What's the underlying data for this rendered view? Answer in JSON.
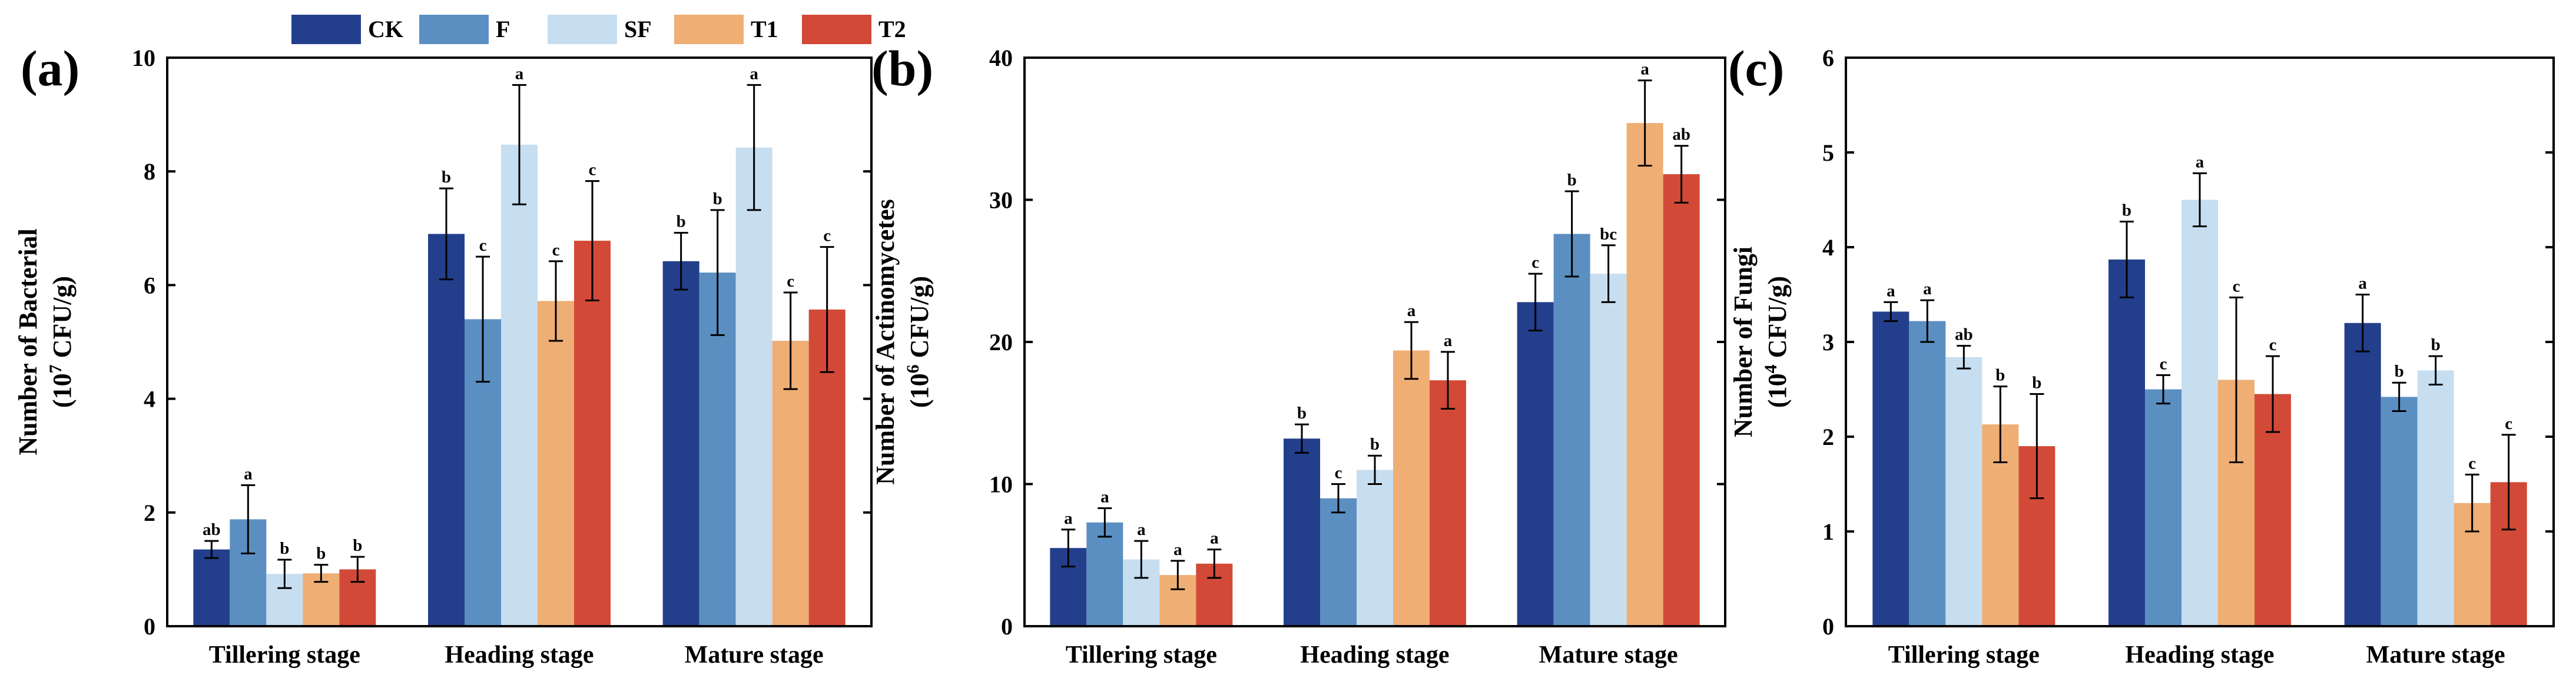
{
  "colors": {
    "CK": "#233f8c",
    "F": "#5b8fc2",
    "SF": "#c7def0",
    "T1": "#efae74",
    "T2": "#d24a37"
  },
  "legend": [
    "CK",
    "F",
    "SF",
    "T1",
    "T2"
  ],
  "chart_data": [
    {
      "type": "bar",
      "panel_label": "(a)",
      "categories": [
        "Tillering stage",
        "Heading stage",
        "Mature stage"
      ],
      "ylabel_line1": "Number of Bacterial",
      "ylabel_line2_pre": "(10",
      "ylabel_line2_sup": "7",
      "ylabel_line2_post": " CFU/g)",
      "ylim": [
        0,
        10
      ],
      "yticks": [
        0,
        2,
        4,
        6,
        8,
        10
      ],
      "series": [
        {
          "name": "CK",
          "values": [
            1.35,
            6.9,
            6.42
          ],
          "errors": [
            0.15,
            0.8,
            0.5
          ],
          "letters": [
            "ab",
            "b",
            "b"
          ]
        },
        {
          "name": "F",
          "values": [
            1.88,
            5.4,
            6.22
          ],
          "errors": [
            0.6,
            1.1,
            1.1
          ],
          "letters": [
            "a",
            "c",
            "b"
          ]
        },
        {
          "name": "SF",
          "values": [
            0.92,
            8.47,
            8.42
          ],
          "errors": [
            0.25,
            1.05,
            1.1
          ],
          "letters": [
            "b",
            "a",
            "a"
          ]
        },
        {
          "name": "T1",
          "values": [
            0.93,
            5.72,
            5.02
          ],
          "errors": [
            0.15,
            0.7,
            0.85
          ],
          "letters": [
            "b",
            "c",
            "c"
          ]
        },
        {
          "name": "T2",
          "values": [
            1.0,
            6.78,
            5.57
          ],
          "errors": [
            0.22,
            1.05,
            1.1
          ],
          "letters": [
            "b",
            "c",
            "c"
          ]
        }
      ]
    },
    {
      "type": "bar",
      "panel_label": "(b)",
      "categories": [
        "Tillering stage",
        "Heading stage",
        "Mature stage"
      ],
      "ylabel_line1": "Number of Actinomycetes",
      "ylabel_line2_pre": "(10",
      "ylabel_line2_sup": "6",
      "ylabel_line2_post": " CFU/g)",
      "ylim": [
        0,
        40
      ],
      "yticks": [
        0,
        10,
        20,
        30,
        40
      ],
      "series": [
        {
          "name": "CK",
          "values": [
            5.5,
            13.2,
            22.8
          ],
          "errors": [
            1.3,
            1.0,
            2.0
          ],
          "letters": [
            "a",
            "b",
            "c"
          ]
        },
        {
          "name": "F",
          "values": [
            7.3,
            9.0,
            27.6
          ],
          "errors": [
            1.0,
            1.0,
            3.0
          ],
          "letters": [
            "a",
            "c",
            "b"
          ]
        },
        {
          "name": "SF",
          "values": [
            4.7,
            11.0,
            24.8
          ],
          "errors": [
            1.3,
            1.0,
            2.0
          ],
          "letters": [
            "a",
            "b",
            "bc"
          ]
        },
        {
          "name": "T1",
          "values": [
            3.6,
            19.4,
            35.4
          ],
          "errors": [
            1.0,
            2.0,
            3.0
          ],
          "letters": [
            "a",
            "a",
            "a"
          ]
        },
        {
          "name": "T2",
          "values": [
            4.4,
            17.3,
            31.8
          ],
          "errors": [
            1.0,
            2.0,
            2.0
          ],
          "letters": [
            "a",
            "a",
            "ab"
          ]
        }
      ]
    },
    {
      "type": "bar",
      "panel_label": "(c)",
      "categories": [
        "Tillering stage",
        "Heading stage",
        "Mature stage"
      ],
      "ylabel_line1": "Number of Fungi",
      "ylabel_line2_pre": "(10",
      "ylabel_line2_sup": "4",
      "ylabel_line2_post": " CFU/g)",
      "ylim": [
        0,
        6
      ],
      "yticks": [
        0,
        1,
        2,
        3,
        4,
        5,
        6
      ],
      "series": [
        {
          "name": "CK",
          "values": [
            3.32,
            3.87,
            3.2
          ],
          "errors": [
            0.1,
            0.4,
            0.3
          ],
          "letters": [
            "a",
            "b",
            "a"
          ]
        },
        {
          "name": "F",
          "values": [
            3.22,
            2.5,
            2.42
          ],
          "errors": [
            0.22,
            0.15,
            0.15
          ],
          "letters": [
            "a",
            "c",
            "b"
          ]
        },
        {
          "name": "SF",
          "values": [
            2.84,
            4.5,
            2.7
          ],
          "errors": [
            0.12,
            0.28,
            0.15
          ],
          "letters": [
            "ab",
            "a",
            "b"
          ]
        },
        {
          "name": "T1",
          "values": [
            2.13,
            2.6,
            1.3
          ],
          "errors": [
            0.4,
            0.87,
            0.3
          ],
          "letters": [
            "b",
            "c",
            "c"
          ]
        },
        {
          "name": "T2",
          "values": [
            1.9,
            2.45,
            1.52
          ],
          "errors": [
            0.55,
            0.4,
            0.5
          ],
          "letters": [
            "b",
            "c",
            "c"
          ]
        }
      ]
    }
  ]
}
